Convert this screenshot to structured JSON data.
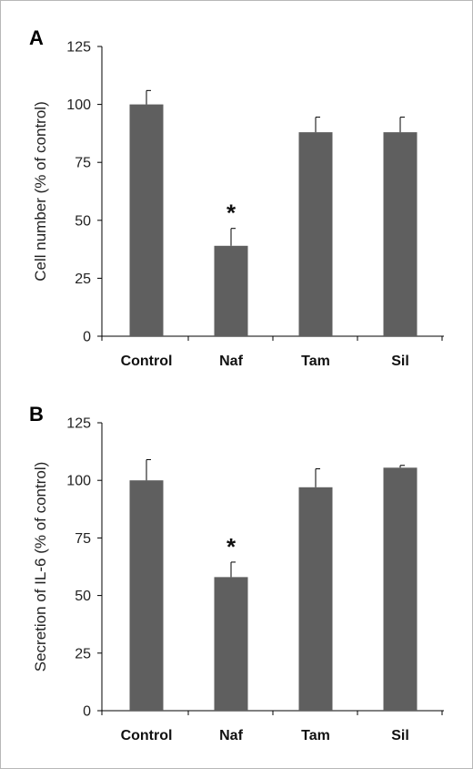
{
  "chart_data": [
    {
      "type": "bar",
      "panel_label": "A",
      "ylabel": "Cell number (% of control)",
      "categories": [
        "Control",
        "Naf",
        "Tam",
        "Sil"
      ],
      "values": [
        100,
        39,
        88,
        88
      ],
      "errors": [
        6,
        7.5,
        6.5,
        6.5
      ],
      "ylim": [
        0,
        125
      ],
      "yticks": [
        "0",
        "25",
        "50",
        "75",
        "100",
        "125"
      ],
      "significance": [
        "",
        "*",
        "",
        ""
      ],
      "bar_color": "#5f5f5f",
      "grid": false
    },
    {
      "type": "bar",
      "panel_label": "B",
      "ylabel": "Secretion of IL-6 (% of control)",
      "categories": [
        "Control",
        "Naf",
        "Tam",
        "Sil"
      ],
      "values": [
        100,
        58,
        97,
        105.5
      ],
      "errors": [
        9,
        6.5,
        8,
        1
      ],
      "ylim": [
        0,
        125
      ],
      "yticks": [
        "0",
        "25",
        "50",
        "75",
        "100",
        "125"
      ],
      "significance": [
        "",
        "*",
        "",
        ""
      ],
      "bar_color": "#5f5f5f",
      "grid": false
    }
  ]
}
